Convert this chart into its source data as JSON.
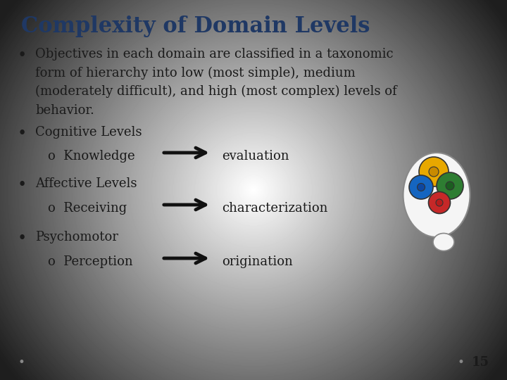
{
  "title": "Complexity of Domain Levels",
  "title_color": "#1F3864",
  "title_fontsize": 22,
  "bg_color_center": "#ffffff",
  "bg_color_edge": "#c8c8c8",
  "text_color": "#1a1a1a",
  "arrow_color": "#111111",
  "bullet1_line1": "Objectives in each domain are classified in a taxonomic",
  "bullet1_line2": "form of hierarchy into low (most simple), medium",
  "bullet1_line3": "(moderately difficult), and high (most complex) levels of",
  "bullet1_line4": "behavior.",
  "bullet2": "Cognitive Levels",
  "sub2": "o  Knowledge",
  "sub2_right": "evaluation",
  "bullet3": "Affective Levels",
  "sub3": "o  Receiving",
  "sub3_right": "characterization",
  "bullet4": "Psychomotor",
  "sub4": "o  Perception",
  "sub4_right": "origination",
  "page_num": "15",
  "font_family": "DejaVu Serif",
  "body_fontsize": 13,
  "sub_fontsize": 13
}
